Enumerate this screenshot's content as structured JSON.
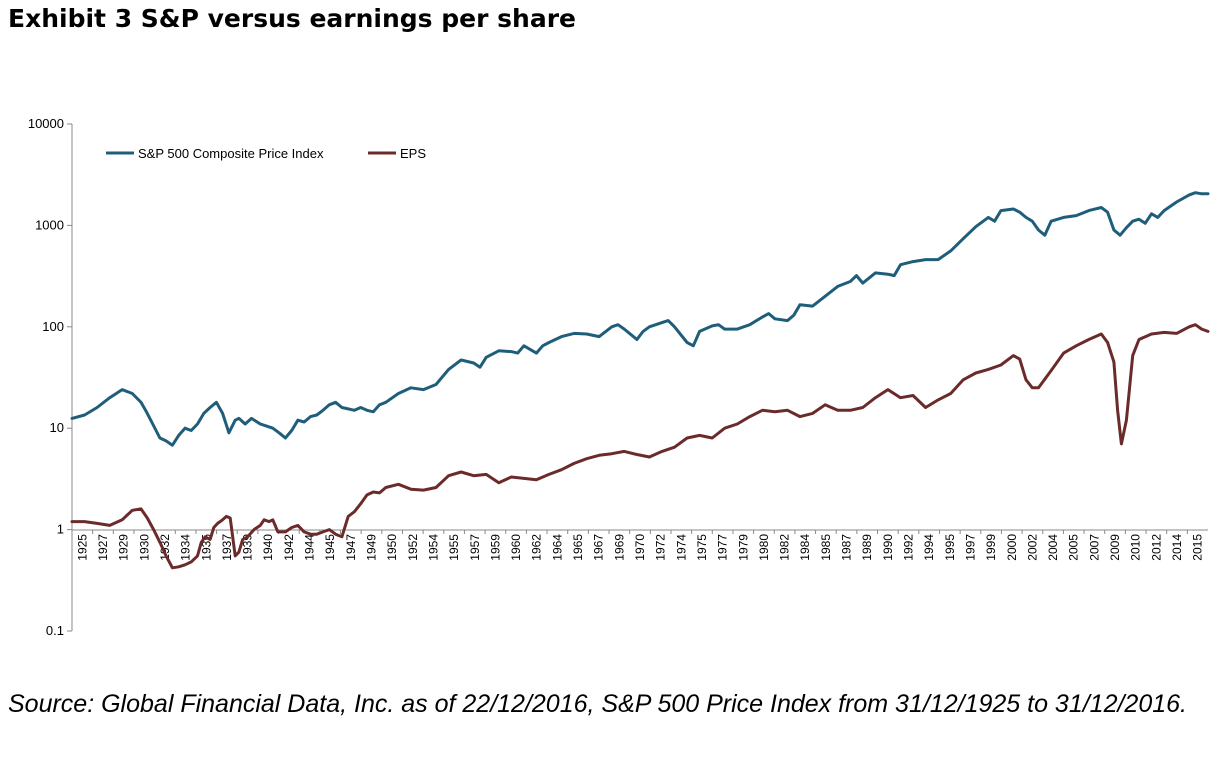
{
  "header": {
    "title": "Exhibit 3 S&P versus earnings per share"
  },
  "footer": {
    "source": "Source: Global Financial Data, Inc. as of 22/12/2016, S&P 500 Price Index from 31/12/1925 to 31/12/2016."
  },
  "chart_data": {
    "type": "line",
    "title": "Exhibit 3 S&P versus earnings per share",
    "xlabel": "",
    "ylabel": "",
    "yscale": "log",
    "ylim": [
      0.1,
      10000
    ],
    "yticks": [
      0.1,
      1,
      10,
      100,
      1000,
      10000
    ],
    "yticklabels": [
      "0.1",
      "1",
      "10",
      "100",
      "1000",
      "10000"
    ],
    "xlim": [
      1925,
      2015.5
    ],
    "xticklabels": [
      "1925",
      "1927",
      "1929",
      "1930",
      "1932",
      "1934",
      "1935",
      "1937",
      "1939",
      "1940",
      "1942",
      "1944",
      "1945",
      "1947",
      "1949",
      "1950",
      "1952",
      "1954",
      "1955",
      "1957",
      "1959",
      "1960",
      "1962",
      "1964",
      "1965",
      "1967",
      "1969",
      "1970",
      "1972",
      "1974",
      "1975",
      "1977",
      "1979",
      "1980",
      "1982",
      "1984",
      "1985",
      "1987",
      "1989",
      "1990",
      "1992",
      "1994",
      "1995",
      "1997",
      "1999",
      "2000",
      "2002",
      "2004",
      "2005",
      "2007",
      "2009",
      "2010",
      "2012",
      "2014",
      "2015"
    ],
    "grid": false,
    "legend": "top-left",
    "colors": {
      "price": "#1f5e7a",
      "eps": "#6b2b2b"
    },
    "series": [
      {
        "name": "S&P 500 Composite Price Index",
        "x": [
          1925,
          1926,
          1927,
          1928,
          1929,
          1929.8,
          1930.5,
          1931,
          1932,
          1932.5,
          1933,
          1933.5,
          1934,
          1934.5,
          1935,
          1935.5,
          1936,
          1936.5,
          1937,
          1937.5,
          1938,
          1938.3,
          1938.8,
          1939.3,
          1940,
          1940.5,
          1941,
          1941.5,
          1942,
          1942.5,
          1943,
          1943.5,
          1944,
          1944.5,
          1945,
          1945.5,
          1946,
          1946.5,
          1947,
          1947.5,
          1948,
          1948.5,
          1949,
          1949.5,
          1950,
          1951,
          1952,
          1953,
          1954,
          1955,
          1956,
          1957,
          1957.5,
          1958,
          1959,
          1960,
          1960.5,
          1961,
          1962,
          1962.5,
          1963,
          1964,
          1965,
          1966,
          1967,
          1968,
          1968.5,
          1969,
          1970,
          1970.5,
          1971,
          1972,
          1972.5,
          1973,
          1974,
          1974.5,
          1975,
          1976,
          1976.5,
          1977,
          1978,
          1979,
          1980,
          1980.5,
          1981,
          1982,
          1982.5,
          1983,
          1984,
          1985,
          1986,
          1987,
          1987.5,
          1988,
          1989,
          1990,
          1990.5,
          1991,
          1992,
          1993,
          1994,
          1995,
          1996,
          1997,
          1998,
          1998.5,
          1999,
          2000,
          2000.5,
          2001,
          2001.5,
          2002,
          2002.5,
          2003,
          2004,
          2005,
          2006,
          2007,
          2007.5,
          2008,
          2008.5,
          2009,
          2009.5,
          2010,
          2010.5,
          2011,
          2011.5,
          2012,
          2013,
          2014,
          2014.5,
          2015,
          2015.5
        ],
        "values": [
          12.5,
          13.5,
          16,
          20,
          24,
          22,
          18,
          14,
          8,
          7.5,
          6.8,
          8.5,
          10,
          9.5,
          11,
          14,
          16,
          18,
          14,
          9,
          12,
          12.5,
          11,
          12.5,
          11,
          10.5,
          10,
          9,
          8,
          9.5,
          12,
          11.5,
          13,
          13.5,
          15,
          17,
          18,
          16,
          15.5,
          15,
          16,
          15,
          14.5,
          17,
          18,
          22,
          25,
          24,
          27,
          38,
          47,
          44,
          40,
          50,
          58,
          57,
          55,
          65,
          55,
          65,
          70,
          80,
          86,
          85,
          80,
          100,
          105,
          95,
          75,
          90,
          100,
          110,
          115,
          100,
          70,
          65,
          90,
          102,
          105,
          95,
          95,
          105,
          125,
          135,
          120,
          115,
          130,
          165,
          160,
          200,
          250,
          280,
          320,
          270,
          340,
          330,
          320,
          410,
          440,
          460,
          460,
          560,
          740,
          970,
          1200,
          1100,
          1400,
          1450,
          1350,
          1200,
          1100,
          900,
          800,
          1100,
          1200,
          1250,
          1400,
          1500,
          1350,
          900,
          800,
          950,
          1100,
          1150,
          1050,
          1300,
          1200,
          1400,
          1700,
          2000,
          2100,
          2050,
          2050
        ]
      },
      {
        "name": "EPS",
        "x": [
          1925,
          1926,
          1927,
          1928,
          1929,
          1929.8,
          1930.5,
          1931,
          1931.5,
          1932,
          1932.5,
          1933,
          1933.5,
          1934,
          1934.5,
          1935,
          1935.3,
          1935.6,
          1936,
          1936.3,
          1936.6,
          1937,
          1937.3,
          1937.6,
          1938,
          1938.3,
          1938.6,
          1939,
          1939.5,
          1940,
          1940.3,
          1940.7,
          1941,
          1941.4,
          1942,
          1942.5,
          1943,
          1943.5,
          1944,
          1944.5,
          1945,
          1945.5,
          1946,
          1946.5,
          1947,
          1947.5,
          1948,
          1948.5,
          1949,
          1949.5,
          1950,
          1951,
          1952,
          1953,
          1954,
          1955,
          1956,
          1957,
          1958,
          1959,
          1960,
          1961,
          1962,
          1963,
          1964,
          1965,
          1966,
          1967,
          1968,
          1969,
          1970,
          1971,
          1972,
          1973,
          1974,
          1975,
          1976,
          1977,
          1978,
          1979,
          1980,
          1981,
          1982,
          1983,
          1984,
          1985,
          1986,
          1987,
          1988,
          1989,
          1990,
          1991,
          1992,
          1993,
          1994,
          1995,
          1996,
          1997,
          1998,
          1999,
          2000,
          2000.5,
          2001,
          2001.5,
          2002,
          2003,
          2004,
          2005,
          2006,
          2007,
          2007.5,
          2008,
          2008.3,
          2008.6,
          2009,
          2009.5,
          2010,
          2011,
          2012,
          2013,
          2014,
          2014.5,
          2015,
          2015.5
        ],
        "values": [
          1.2,
          1.2,
          1.15,
          1.1,
          1.25,
          1.55,
          1.6,
          1.3,
          1,
          0.75,
          0.55,
          0.42,
          0.43,
          0.45,
          0.48,
          0.55,
          0.75,
          0.85,
          0.8,
          1.05,
          1.15,
          1.25,
          1.35,
          1.3,
          0.55,
          0.6,
          0.8,
          0.85,
          1.0,
          1.1,
          1.25,
          1.2,
          1.25,
          0.95,
          0.95,
          1.05,
          1.1,
          0.95,
          0.9,
          0.9,
          0.95,
          1.0,
          0.9,
          0.85,
          1.35,
          1.5,
          1.8,
          2.2,
          2.35,
          2.3,
          2.6,
          2.8,
          2.5,
          2.45,
          2.6,
          3.4,
          3.7,
          3.4,
          3.5,
          2.9,
          3.3,
          3.2,
          3.1,
          3.5,
          3.9,
          4.5,
          5.0,
          5.4,
          5.6,
          5.9,
          5.5,
          5.2,
          5.9,
          6.5,
          8.0,
          8.5,
          8.0,
          10,
          11,
          13,
          15,
          14.5,
          15,
          13,
          14,
          17,
          15,
          15,
          16,
          20,
          24,
          20,
          21,
          16,
          19,
          22,
          30,
          35,
          38,
          42,
          52,
          48,
          30,
          25,
          25,
          37,
          55,
          65,
          75,
          85,
          70,
          45,
          15,
          7,
          12,
          52,
          75,
          85,
          88,
          86,
          100,
          105,
          95,
          90
        ]
      }
    ]
  }
}
